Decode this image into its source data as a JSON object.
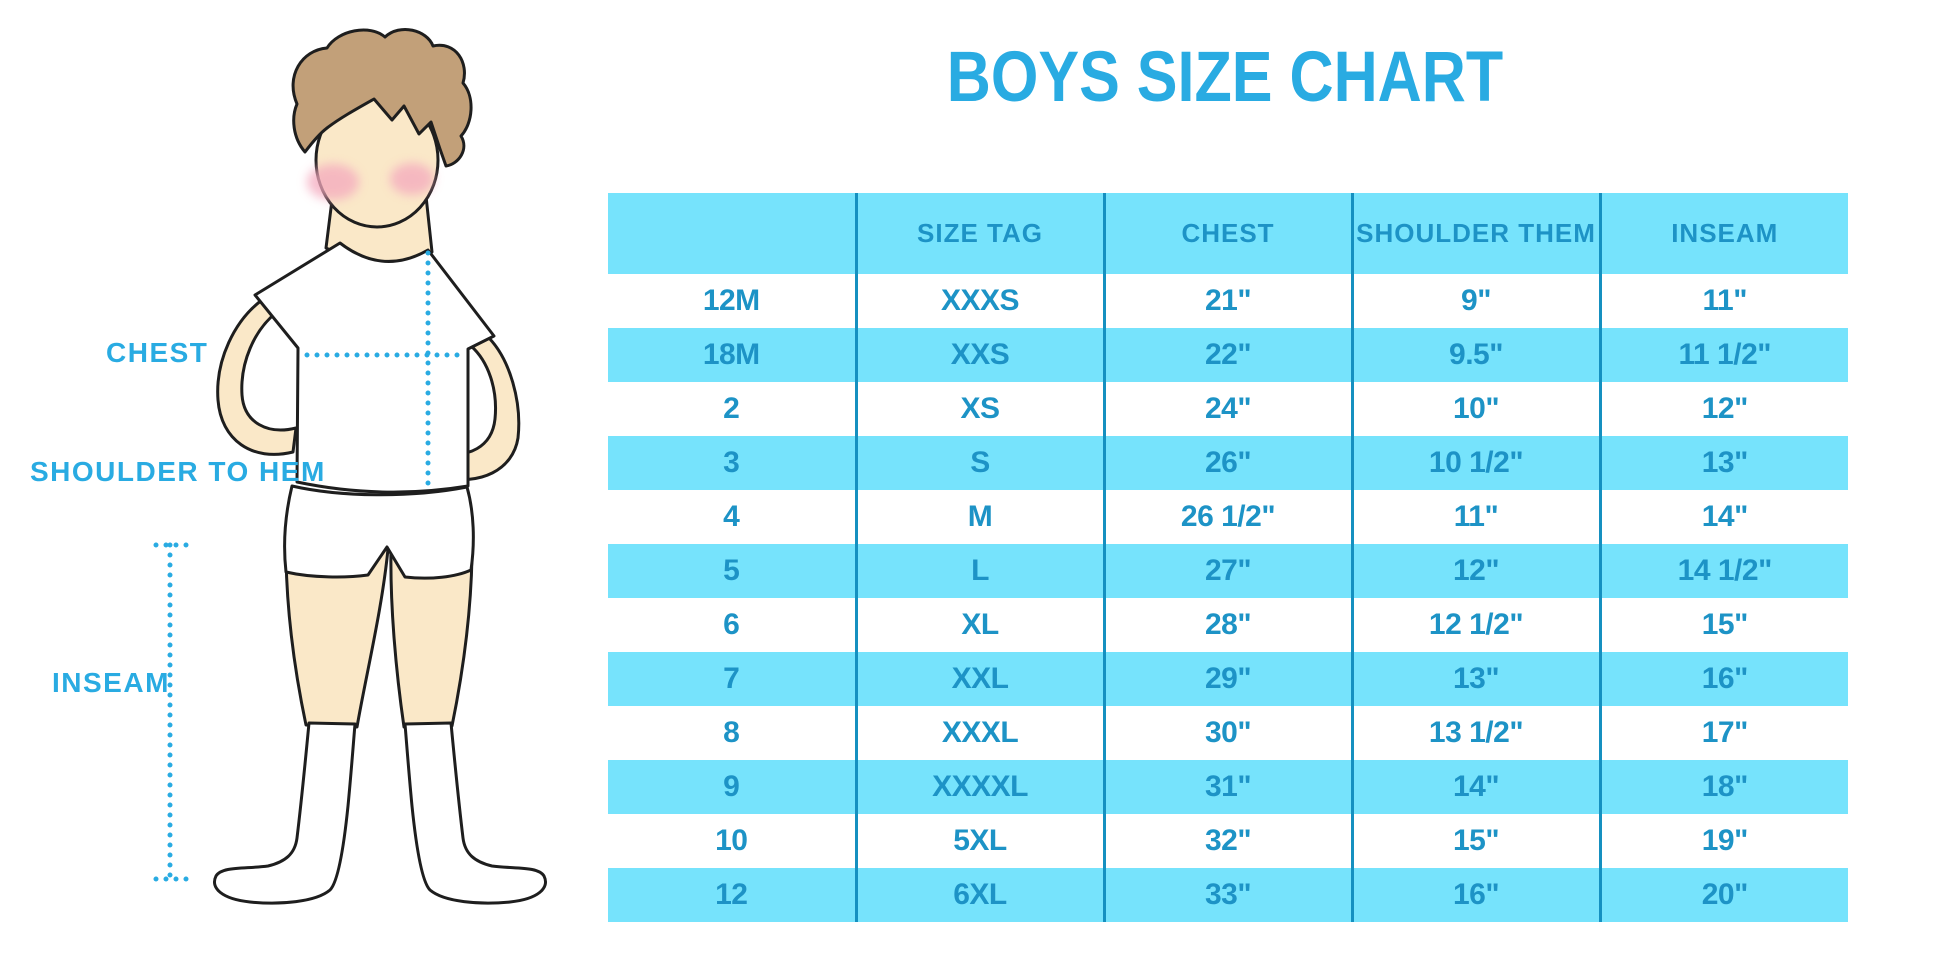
{
  "title": "BOYS SIZE CHART",
  "figure": {
    "labels": {
      "chest": "CHEST",
      "shoulder_to_hem": "SHOULDER TO HEM",
      "inseam": "INSEAM"
    }
  },
  "chart_data": {
    "type": "table",
    "title": "BOYS SIZE CHART",
    "columns": [
      "",
      "SIZE TAG",
      "CHEST",
      "SHOULDER THEM",
      "INSEAM"
    ],
    "rows": [
      [
        "12M",
        "XXXS",
        "21\"",
        "9\"",
        "11\""
      ],
      [
        "18M",
        "XXS",
        "22\"",
        "9.5\"",
        "11 1/2\""
      ],
      [
        "2",
        "XS",
        "24\"",
        "10\"",
        "12\""
      ],
      [
        "3",
        "S",
        "26\"",
        "10 1/2\"",
        "13\""
      ],
      [
        "4",
        "M",
        "26 1/2\"",
        "11\"",
        "14\""
      ],
      [
        "5",
        "L",
        "27\"",
        "12\"",
        "14 1/2\""
      ],
      [
        "6",
        "XL",
        "28\"",
        "12 1/2\"",
        "15\""
      ],
      [
        "7",
        "XXL",
        "29\"",
        "13\"",
        "16\""
      ],
      [
        "8",
        "XXXL",
        "30\"",
        "13 1/2\"",
        "17\""
      ],
      [
        "9",
        "XXXXL",
        "31\"",
        "14\"",
        "18\""
      ],
      [
        "10",
        "5XL",
        "32\"",
        "15\"",
        "19\""
      ],
      [
        "12",
        "6XL",
        "33\"",
        "16\"",
        "20\""
      ]
    ],
    "layout_hints": {
      "header_fill": true,
      "row_striping": "alternate rows highlighted starting with 18M",
      "column_separators": true
    }
  },
  "colors": {
    "accent_blue": "#29ABE2",
    "stripe_cyan": "#76E3FC",
    "table_text_blue": "#1D93C6",
    "separator_blue": "#1590C0",
    "skin": "#FAE8C8",
    "hair_brown": "#C2A079",
    "blush_pink": "#F4A9BE",
    "outline": "#1E1E1E"
  }
}
